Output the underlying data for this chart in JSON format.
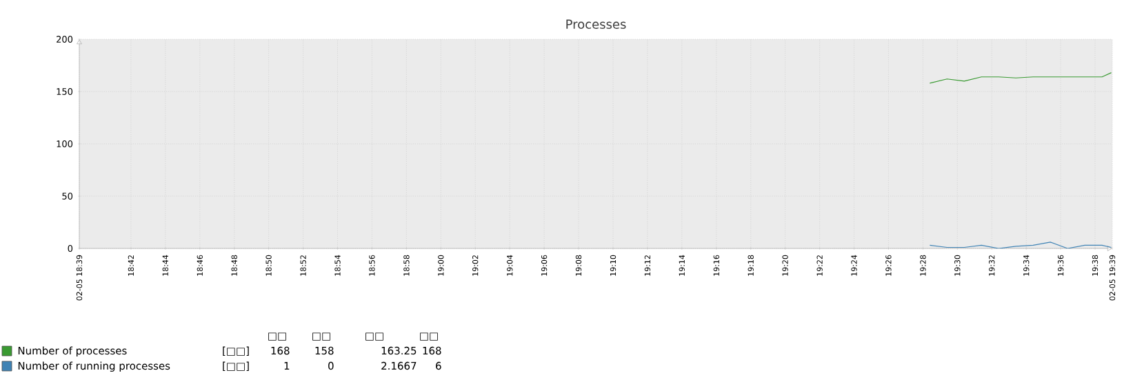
{
  "chart_data": {
    "type": "line",
    "title": "Processes",
    "x": [
      19.4733,
      19.49,
      19.5067,
      19.5233,
      19.54,
      19.5567,
      19.5733,
      19.59,
      19.6067,
      19.6233,
      19.64,
      19.649
    ],
    "series": [
      {
        "name": "Number of processes",
        "color": "#3a9a32",
        "values": [
          158,
          162,
          160,
          164,
          164,
          163,
          164,
          164,
          164,
          164,
          164,
          168
        ]
      },
      {
        "name": "Number of running processes",
        "color": "#3f83b5",
        "values": [
          3,
          1,
          1,
          3,
          0,
          2,
          3,
          6,
          0,
          3,
          3,
          1
        ]
      }
    ],
    "xlim": [
      18.65,
      19.65
    ],
    "xticks": [
      {
        "value": 18.65,
        "label": "02-05 18:39"
      },
      {
        "value": 18.7,
        "label": "18:42"
      },
      {
        "value": 18.7333,
        "label": "18:44"
      },
      {
        "value": 18.7667,
        "label": "18:46"
      },
      {
        "value": 18.8,
        "label": "18:48"
      },
      {
        "value": 18.8333,
        "label": "18:50"
      },
      {
        "value": 18.8667,
        "label": "18:52"
      },
      {
        "value": 18.9,
        "label": "18:54"
      },
      {
        "value": 18.9333,
        "label": "18:56"
      },
      {
        "value": 18.9667,
        "label": "18:58"
      },
      {
        "value": 19,
        "label": "19:00"
      },
      {
        "value": 19.0333,
        "label": "19:02"
      },
      {
        "value": 19.0667,
        "label": "19:04"
      },
      {
        "value": 19.1,
        "label": "19:06"
      },
      {
        "value": 19.1333,
        "label": "19:08"
      },
      {
        "value": 19.1667,
        "label": "19:10"
      },
      {
        "value": 19.2,
        "label": "19:12"
      },
      {
        "value": 19.2333,
        "label": "19:14"
      },
      {
        "value": 19.2667,
        "label": "19:16"
      },
      {
        "value": 19.3,
        "label": "19:18"
      },
      {
        "value": 19.3333,
        "label": "19:20"
      },
      {
        "value": 19.3667,
        "label": "19:22"
      },
      {
        "value": 19.4,
        "label": "19:24"
      },
      {
        "value": 19.4333,
        "label": "19:26"
      },
      {
        "value": 19.4667,
        "label": "19:28"
      },
      {
        "value": 19.5,
        "label": "19:30"
      },
      {
        "value": 19.5333,
        "label": "19:32"
      },
      {
        "value": 19.5667,
        "label": "19:34"
      },
      {
        "value": 19.6,
        "label": "19:36"
      },
      {
        "value": 19.6333,
        "label": "19:38"
      },
      {
        "value": 19.65,
        "label": "02-05 19:39"
      }
    ],
    "ylim": [
      0,
      200
    ],
    "yticks": [
      0,
      50,
      100,
      150,
      200
    ],
    "grid": true,
    "legend": "bottom",
    "marker": "none",
    "annotations": [
      "□□",
      "□□",
      "□□",
      "□□",
      "[□□]",
      "168",
      "158",
      "163.25",
      "168",
      "[□□]",
      "1",
      "0",
      "2.1667",
      "6"
    ]
  }
}
